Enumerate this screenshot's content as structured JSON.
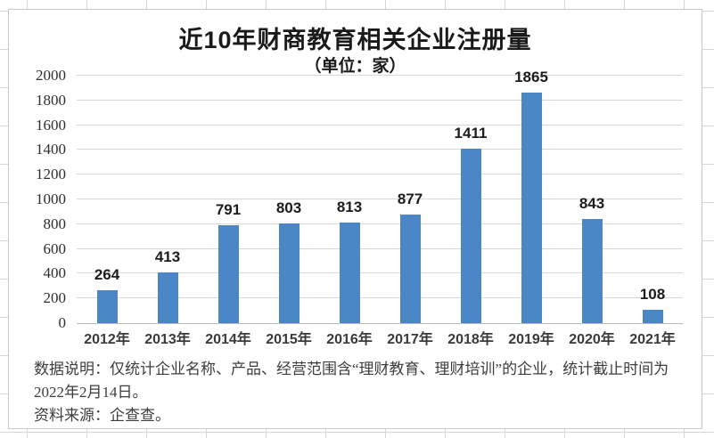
{
  "chart_data": {
    "type": "bar",
    "title": "近10年财商教育相关企业注册量",
    "subtitle": "（单位：家）",
    "categories": [
      "2012年",
      "2013年",
      "2014年",
      "2015年",
      "2016年",
      "2017年",
      "2018年",
      "2019年",
      "2020年",
      "2021年"
    ],
    "values": [
      264,
      413,
      791,
      803,
      813,
      877,
      1411,
      1865,
      843,
      108
    ],
    "ylim": [
      0,
      2000
    ],
    "ytick_step": 200,
    "ytick_labels": [
      "0",
      "200",
      "400",
      "600",
      "800",
      "1000",
      "1200",
      "1400",
      "1600",
      "1800",
      "2000"
    ],
    "grid": "horizontal",
    "legend": "none",
    "bar_color": "#4b87c6",
    "gridline_color": "#d9d9d9"
  },
  "footer": {
    "note": "数据说明：仅统计企业名称、产品、经营范围含“理财教育、理财培训”的企业，统计截止时间为2022年2月14日。",
    "source": "资料来源：企查查。"
  }
}
